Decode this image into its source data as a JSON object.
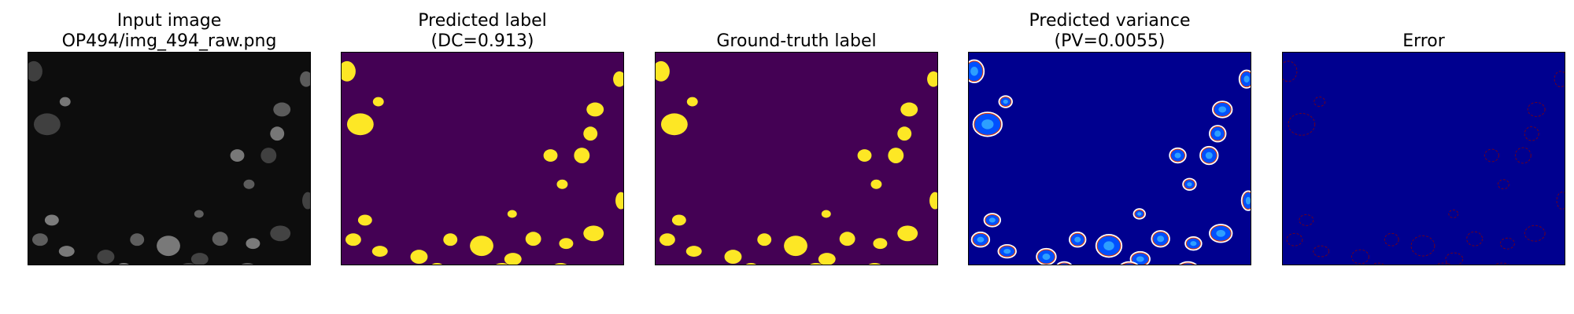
{
  "panels": [
    {
      "id": "input",
      "title_lines": [
        "Input image",
        "OP494/img_494_raw.png"
      ],
      "bg": "#0d0d0d",
      "type": "grayscale"
    },
    {
      "id": "pred-label",
      "title_lines": [
        "Predicted label",
        "(DC=0.913)"
      ],
      "bg": "#440154",
      "fg": "#fde725",
      "type": "mask"
    },
    {
      "id": "gt-label",
      "title_lines": [
        "Ground-truth label"
      ],
      "bg": "#440154",
      "fg": "#fde725",
      "type": "mask"
    },
    {
      "id": "pred-variance",
      "title_lines": [
        "Predicted variance",
        "(PV=0.0055)"
      ],
      "bg": "#00008f",
      "type": "variance"
    },
    {
      "id": "error",
      "title_lines": [
        "Error"
      ],
      "bg": "#00008f",
      "fg": "#8b0000",
      "type": "error"
    }
  ]
}
